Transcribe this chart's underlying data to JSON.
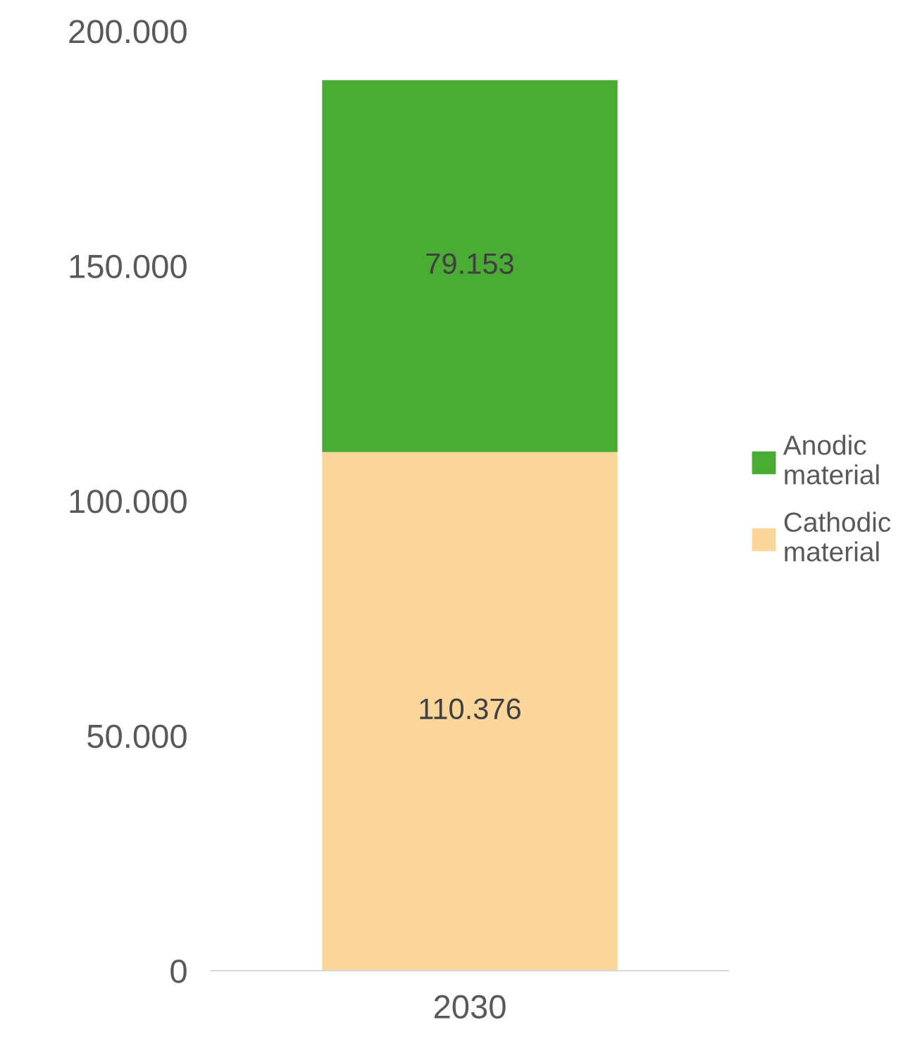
{
  "chart_data": {
    "type": "bar",
    "stacked": true,
    "categories": [
      "2030"
    ],
    "series": [
      {
        "name": "Cathodic material",
        "color": "#fad69a",
        "values": [
          110376
        ],
        "value_labels": [
          "110.376"
        ]
      },
      {
        "name": "Anodic material",
        "color": "#4aab35",
        "values": [
          79153
        ],
        "value_labels": [
          "79.153"
        ]
      }
    ],
    "ylim": [
      0,
      200000
    ],
    "yticks": [
      {
        "value": 0,
        "label": "0"
      },
      {
        "value": 50000,
        "label": "50.000"
      },
      {
        "value": 100000,
        "label": "100.000"
      },
      {
        "value": 150000,
        "label": "150.000"
      },
      {
        "value": 200000,
        "label": "200.000"
      }
    ],
    "grid": false,
    "legend": "right"
  }
}
